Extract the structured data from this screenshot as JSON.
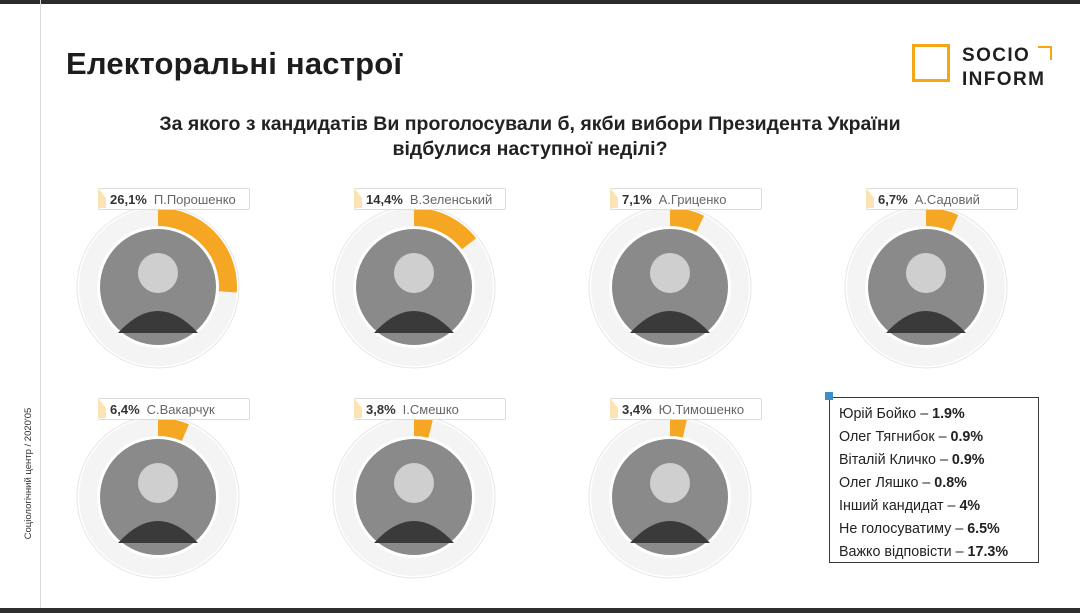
{
  "header": {
    "title": "Електоральні настрої",
    "question_line1": "За якого з кандидатів Ви проголосували б, якби вибори Президента України",
    "question_line2": "відбулися наступної неділі?"
  },
  "logo": {
    "line1": "SOCIO",
    "line2": "INFORM"
  },
  "side_caption": "Соціологічний центр / 2020'05",
  "colors": {
    "accent": "#f5a623",
    "ring_bg": "#f4f4f4",
    "ring_border": "#e6e6e6",
    "text": "#222222"
  },
  "chart_data": {
    "type": "pie",
    "unit": "%",
    "candidates": [
      {
        "name": "П.Порошенко",
        "value": 26.1,
        "label": "26,1%"
      },
      {
        "name": "В.Зеленський",
        "value": 14.4,
        "label": "14,4%"
      },
      {
        "name": "А.Гриценко",
        "value": 7.1,
        "label": "7,1%"
      },
      {
        "name": "А.Садовий",
        "value": 6.7,
        "label": "6,7%"
      },
      {
        "name": "С.Вакарчук",
        "value": 6.4,
        "label": "6,4%"
      },
      {
        "name": "І.Смешко",
        "value": 3.8,
        "label": "3,8%"
      },
      {
        "name": "Ю.Тимошенко",
        "value": 3.4,
        "label": "3,4%"
      }
    ],
    "others": [
      {
        "name": "Юрій Бойко",
        "value": 1.9,
        "label": "1.9%"
      },
      {
        "name": "Олег Тягнибок",
        "value": 0.9,
        "label": "0.9%"
      },
      {
        "name": "Віталій Кличко",
        "value": 0.9,
        "label": "0.9%"
      },
      {
        "name": "Олег Ляшко",
        "value": 0.8,
        "label": "0.8%"
      },
      {
        "name": "Інший кандидат",
        "value": 4,
        "label": "4%"
      },
      {
        "name": "Не голосуватиму",
        "value": 6.5,
        "label": "6.5%"
      },
      {
        "name": "Важко відповісти",
        "value": 17.3,
        "label": "17.3%"
      }
    ]
  }
}
